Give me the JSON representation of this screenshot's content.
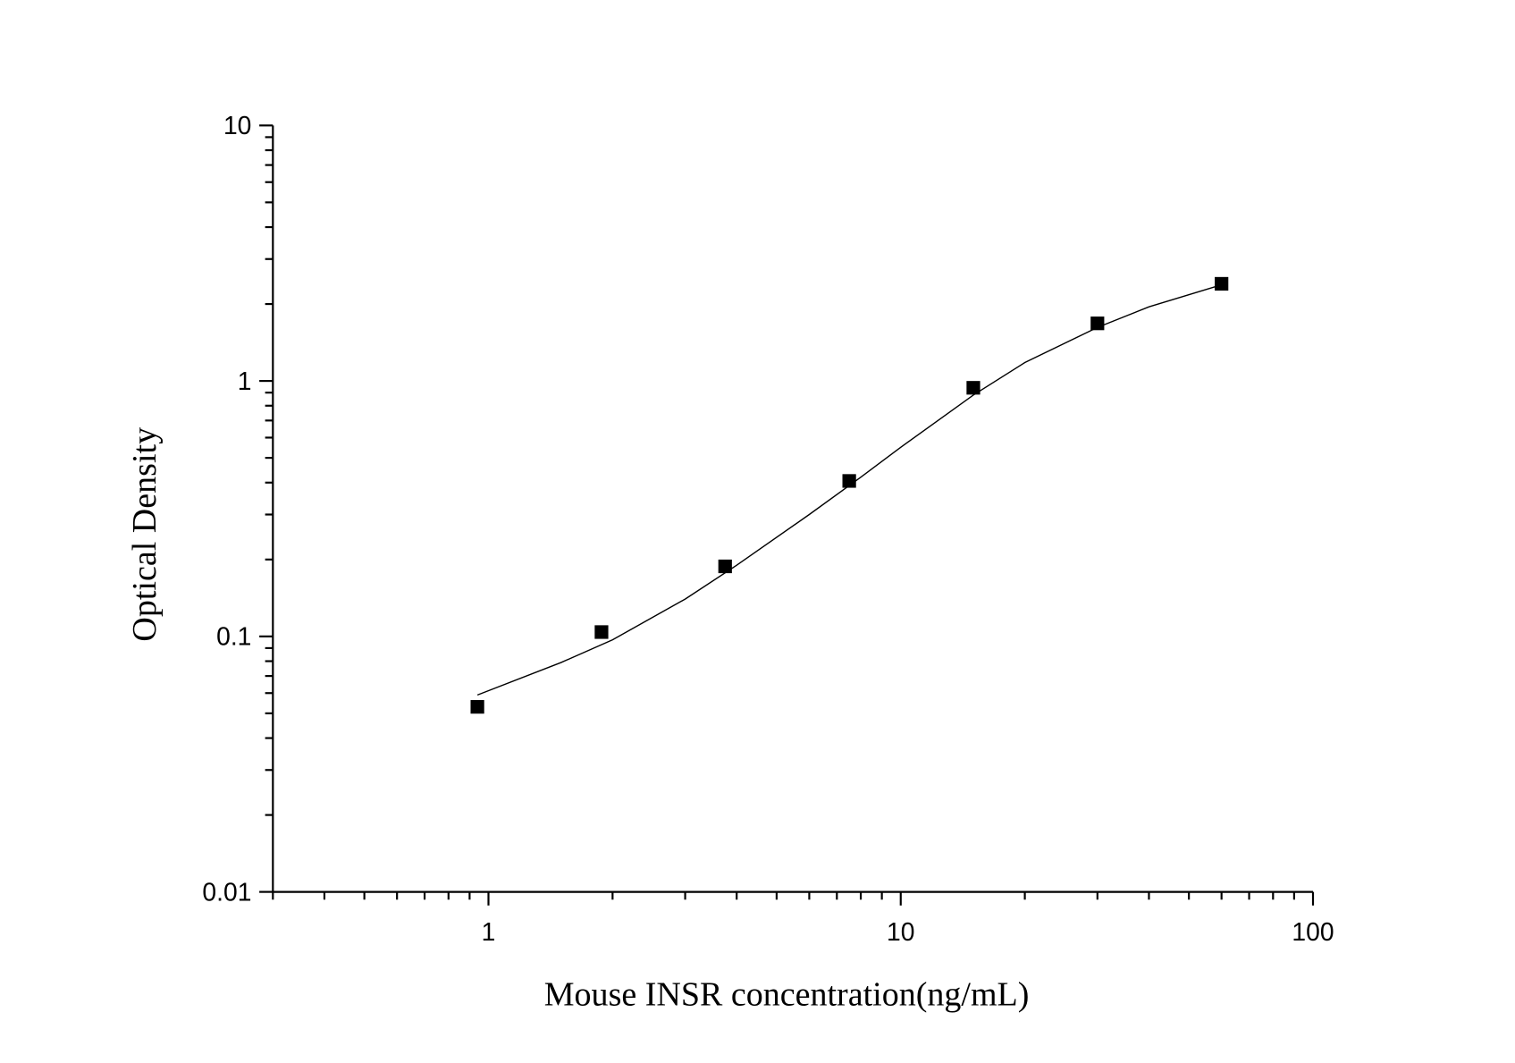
{
  "chart_data": {
    "type": "scatter",
    "x_label": "Mouse INSR concentration(ng/mL)",
    "y_label": "Optical Density",
    "x_log": true,
    "y_log": true,
    "xlim": [
      0.3,
      100
    ],
    "ylim": [
      0.01,
      10
    ],
    "xticks": [
      1,
      10,
      100
    ],
    "yticks": [
      {
        "value": 0.01,
        "label": "0.01"
      },
      {
        "value": 0.1,
        "label": "0.1"
      },
      1,
      10
    ],
    "xminor_ticks": [
      0.3,
      0.4,
      0.5,
      0.6,
      0.7,
      0.8,
      0.9,
      2,
      3,
      4,
      5,
      6,
      7,
      8,
      9,
      20,
      30,
      40,
      50,
      60,
      70,
      80,
      90
    ],
    "yminor_ticks": [
      0.02,
      0.03,
      0.04,
      0.05,
      0.06,
      0.07,
      0.08,
      0.09,
      0.2,
      0.3,
      0.4,
      0.5,
      0.6,
      0.7,
      0.8,
      0.9,
      2,
      3,
      4,
      5,
      6,
      7,
      8,
      9
    ],
    "series": [
      {
        "kind": "points",
        "color": "#000000",
        "x": [
          0.94,
          1.88,
          3.75,
          7.5,
          15,
          30,
          60
        ],
        "values": [
          0.053,
          0.104,
          0.188,
          0.406,
          0.94,
          1.68,
          2.4
        ]
      },
      {
        "kind": "curve",
        "color": "#000000",
        "x": [
          0.94,
          1.5,
          2,
          3,
          4,
          6,
          8,
          10,
          15,
          20,
          30,
          40,
          60
        ],
        "values": [
          0.059,
          0.079,
          0.097,
          0.14,
          0.19,
          0.3,
          0.42,
          0.55,
          0.88,
          1.18,
          1.62,
          1.95,
          2.38
        ]
      }
    ]
  }
}
